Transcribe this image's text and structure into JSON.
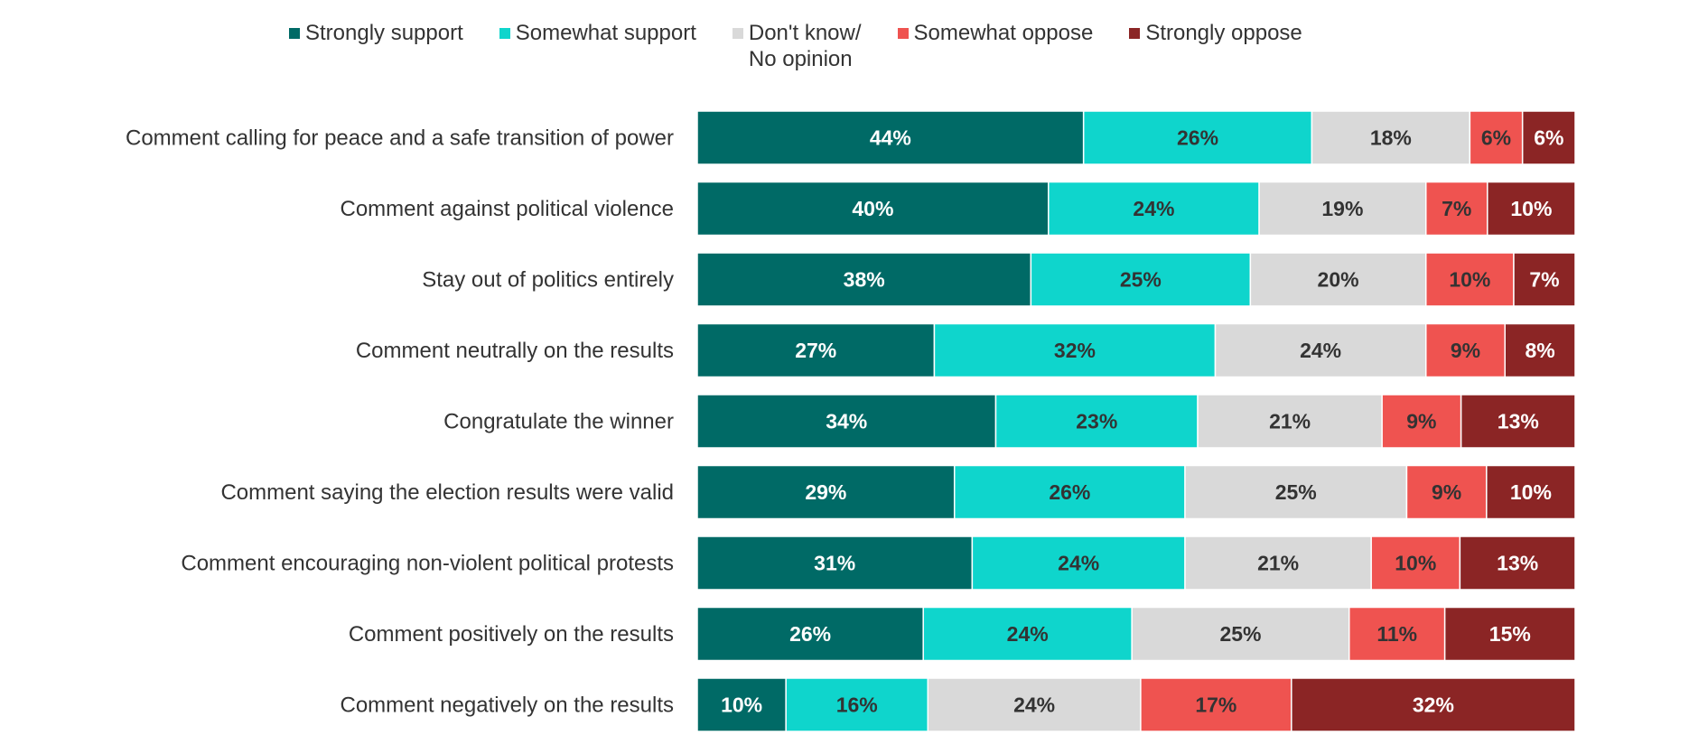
{
  "chart_data": {
    "type": "bar",
    "orientation": "horizontal",
    "stacked": true,
    "legend_position": "top",
    "grid": false,
    "xlim": [
      0,
      100
    ],
    "categories": [
      "Comment calling for peace and a safe transition of power",
      "Comment against political violence",
      "Stay out of politics entirely",
      "Comment neutrally on the results",
      "Congratulate the winner",
      "Comment saying the election results were valid",
      "Comment encouraging non-violent political protests",
      "Comment positively on the results",
      "Comment negatively on the results"
    ],
    "series": [
      {
        "name": "Strongly support",
        "color": "#006a66",
        "label_color": "#ffffff",
        "values": [
          44,
          40,
          38,
          27,
          34,
          29,
          31,
          26,
          10
        ]
      },
      {
        "name": "Somewhat support",
        "color": "#0fd5cc",
        "label_color": "#333333",
        "values": [
          26,
          24,
          25,
          32,
          23,
          26,
          24,
          24,
          16
        ]
      },
      {
        "name": "Don't know/\nNo opinion",
        "color": "#d9d9d9",
        "label_color": "#333333",
        "values": [
          18,
          19,
          20,
          24,
          21,
          25,
          21,
          25,
          24
        ]
      },
      {
        "name": "Somewhat oppose",
        "color": "#ef5350",
        "label_color": "#333333",
        "values": [
          6,
          7,
          10,
          9,
          9,
          9,
          10,
          11,
          17
        ]
      },
      {
        "name": "Strongly oppose",
        "color": "#8b2525",
        "label_color": "#ffffff",
        "values": [
          6,
          10,
          7,
          8,
          13,
          10,
          13,
          15,
          32
        ]
      }
    ],
    "value_suffix": "%"
  }
}
